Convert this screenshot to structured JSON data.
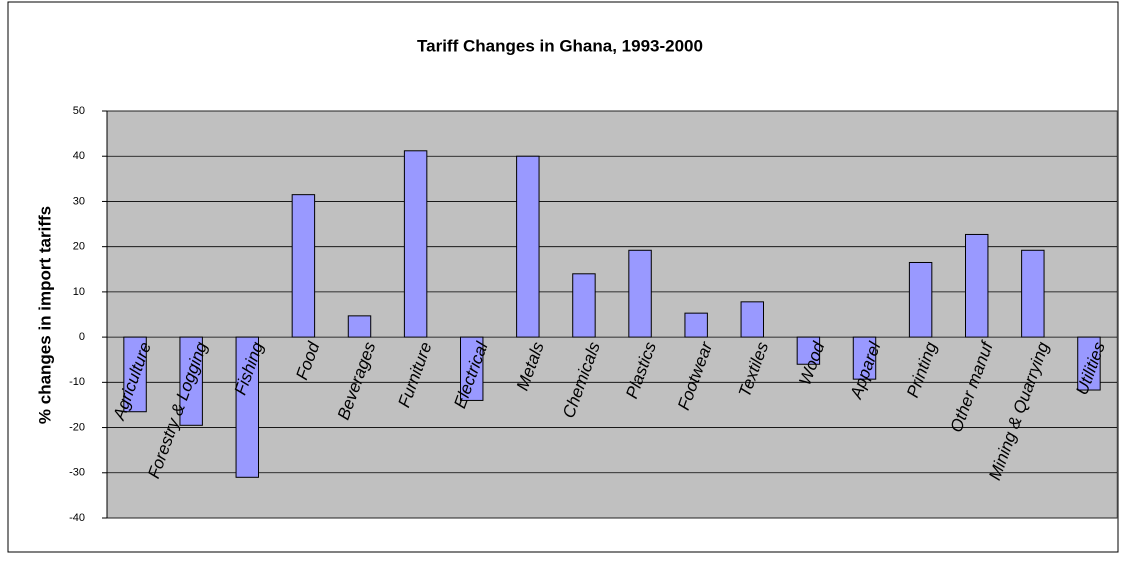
{
  "chart_data": {
    "type": "bar",
    "title": "Tariff Changes in Ghana, 1993-2000",
    "y_label": "% changes in import tariffs",
    "categories": [
      "Agriculture",
      "Forestry & Logging",
      "Fishing",
      "Food",
      "Beverages",
      "Furniture",
      "Electrical",
      "Metals",
      "Chemicals",
      "Plastics",
      "Footwear",
      "Textiles",
      "Wood",
      "Apparel",
      "Printing",
      "Other manuf",
      "Mining & Quarrying",
      "Utilities"
    ],
    "values": [
      -16.5,
      -19.5,
      -31,
      31.5,
      4.7,
      41.2,
      -14,
      40,
      14,
      19.2,
      5.3,
      7.8,
      -6,
      -9.3,
      16.5,
      22.7,
      19.2,
      -11.7
    ],
    "color": "#9999ff",
    "ylim": [
      -40,
      50
    ],
    "yticks": [
      -40,
      -30,
      -20,
      -10,
      0,
      10,
      20,
      30,
      40,
      50
    ],
    "grid": true
  }
}
